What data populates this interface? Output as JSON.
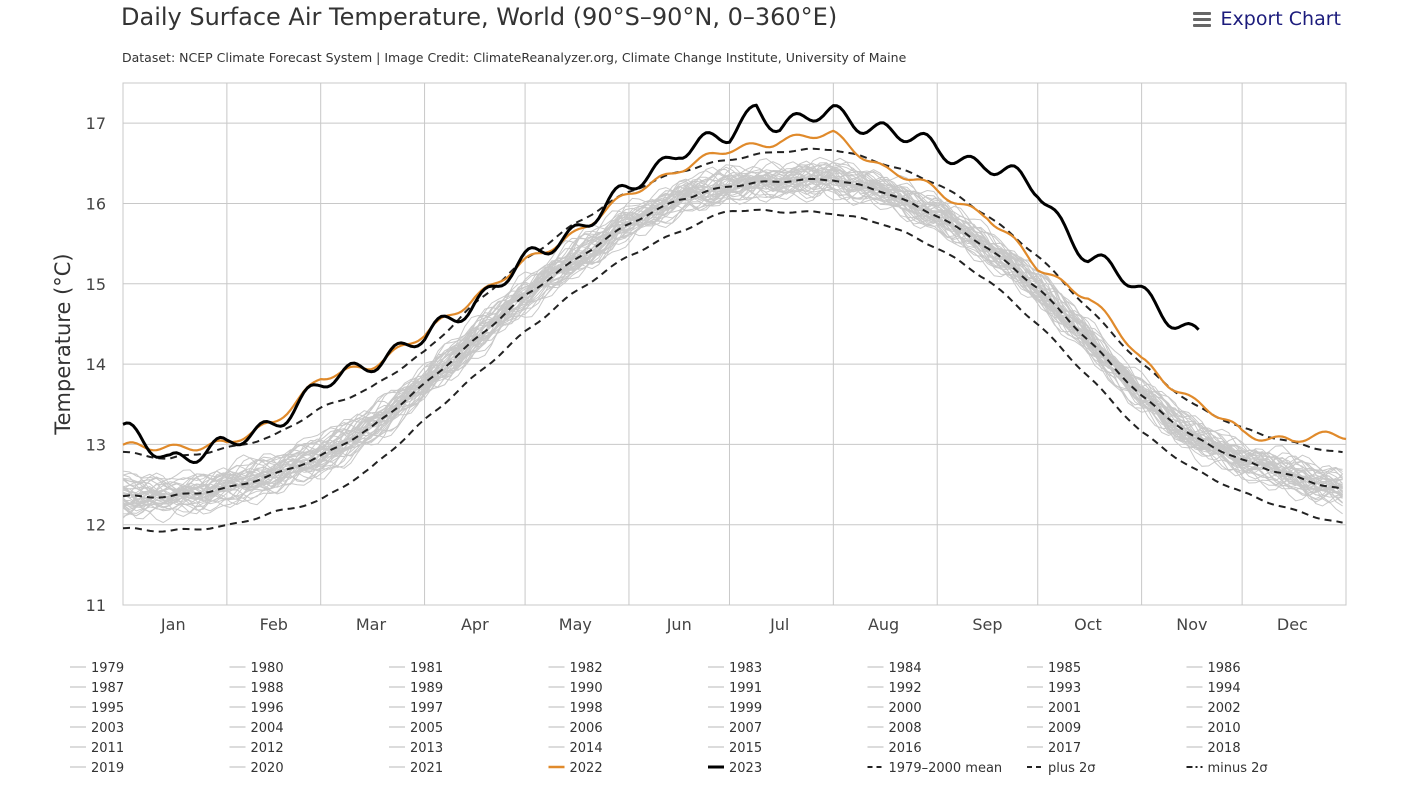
{
  "header": {
    "title": "Daily Surface Air Temperature, World (90°S–90°N, 0–360°E)",
    "subtitle": "Dataset: NCEP Climate Forecast System | Image Credit: ClimateReanalyzer.org, Climate Change Institute, University of Maine",
    "export_label": "Export Chart",
    "export_icon": "menu-icon"
  },
  "chart_data": {
    "type": "line",
    "title": "Daily Surface Air Temperature, World (90°S–90°N, 0–360°E)",
    "xlabel": "",
    "ylabel": "Temperature (°C)",
    "xlim": [
      1,
      366
    ],
    "ylim": [
      11,
      17.5
    ],
    "yticks": [
      11,
      12,
      13,
      14,
      15,
      16,
      17
    ],
    "month_labels": [
      "Jan",
      "Feb",
      "Mar",
      "Apr",
      "May",
      "Jun",
      "Jul",
      "Aug",
      "Sep",
      "Oct",
      "Nov",
      "Dec"
    ],
    "month_label_days": [
      16,
      46,
      75,
      106,
      136,
      167,
      197,
      228,
      259,
      289,
      320,
      350
    ],
    "month_boundary_days": [
      32,
      60,
      91,
      121,
      152,
      182,
      213,
      244,
      274,
      305,
      335
    ],
    "grid": true,
    "legend_position": "bottom",
    "colors": {
      "historical": "#c8c8c8",
      "y2022": "#e08a2b",
      "y2023": "#000000",
      "reference": "#222222"
    },
    "series": [
      {
        "name": "1979–2000 mean",
        "style": "dashed",
        "color": "#222222",
        "points": [
          [
            1,
            12.35
          ],
          [
            15,
            12.35
          ],
          [
            32,
            12.45
          ],
          [
            46,
            12.62
          ],
          [
            60,
            12.85
          ],
          [
            75,
            13.2
          ],
          [
            91,
            13.75
          ],
          [
            106,
            14.3
          ],
          [
            121,
            14.85
          ],
          [
            136,
            15.3
          ],
          [
            152,
            15.75
          ],
          [
            167,
            16.05
          ],
          [
            182,
            16.22
          ],
          [
            197,
            16.28
          ],
          [
            213,
            16.3
          ],
          [
            228,
            16.15
          ],
          [
            244,
            15.85
          ],
          [
            259,
            15.45
          ],
          [
            274,
            14.95
          ],
          [
            289,
            14.3
          ],
          [
            305,
            13.6
          ],
          [
            320,
            13.1
          ],
          [
            335,
            12.8
          ],
          [
            350,
            12.6
          ],
          [
            366,
            12.42
          ]
        ]
      },
      {
        "name": "plus 2σ",
        "style": "dashed",
        "color": "#222222",
        "points": [
          [
            1,
            12.9
          ],
          [
            15,
            12.82
          ],
          [
            32,
            12.95
          ],
          [
            46,
            13.1
          ],
          [
            60,
            13.45
          ],
          [
            75,
            13.7
          ],
          [
            91,
            14.15
          ],
          [
            106,
            14.75
          ],
          [
            121,
            15.3
          ],
          [
            136,
            15.75
          ],
          [
            152,
            16.15
          ],
          [
            167,
            16.4
          ],
          [
            182,
            16.55
          ],
          [
            197,
            16.65
          ],
          [
            213,
            16.68
          ],
          [
            228,
            16.5
          ],
          [
            244,
            16.25
          ],
          [
            259,
            15.85
          ],
          [
            274,
            15.35
          ],
          [
            289,
            14.7
          ],
          [
            305,
            14.0
          ],
          [
            320,
            13.5
          ],
          [
            335,
            13.2
          ],
          [
            350,
            13.02
          ],
          [
            366,
            12.88
          ]
        ]
      },
      {
        "name": "minus 2σ",
        "style": "dashed",
        "color": "#222222",
        "points": [
          [
            1,
            11.95
          ],
          [
            15,
            11.92
          ],
          [
            32,
            11.98
          ],
          [
            46,
            12.15
          ],
          [
            60,
            12.3
          ],
          [
            75,
            12.7
          ],
          [
            91,
            13.3
          ],
          [
            106,
            13.85
          ],
          [
            121,
            14.4
          ],
          [
            136,
            14.9
          ],
          [
            152,
            15.35
          ],
          [
            167,
            15.65
          ],
          [
            182,
            15.92
          ],
          [
            197,
            15.9
          ],
          [
            213,
            15.88
          ],
          [
            228,
            15.75
          ],
          [
            244,
            15.45
          ],
          [
            259,
            15.05
          ],
          [
            274,
            14.5
          ],
          [
            289,
            13.85
          ],
          [
            305,
            13.15
          ],
          [
            320,
            12.7
          ],
          [
            335,
            12.4
          ],
          [
            350,
            12.18
          ],
          [
            366,
            12.0
          ]
        ]
      },
      {
        "name": "2022",
        "style": "solid",
        "color": "#e08a2b",
        "points": [
          [
            1,
            12.95
          ],
          [
            15,
            12.98
          ],
          [
            32,
            12.98
          ],
          [
            46,
            13.3
          ],
          [
            60,
            13.8
          ],
          [
            75,
            14.0
          ],
          [
            91,
            14.35
          ],
          [
            106,
            14.85
          ],
          [
            121,
            15.25
          ],
          [
            136,
            15.65
          ],
          [
            152,
            16.1
          ],
          [
            167,
            16.45
          ],
          [
            182,
            16.65
          ],
          [
            197,
            16.8
          ],
          [
            213,
            16.85
          ],
          [
            228,
            16.45
          ],
          [
            244,
            16.15
          ],
          [
            259,
            15.85
          ],
          [
            274,
            15.2
          ],
          [
            289,
            14.85
          ],
          [
            305,
            14.05
          ],
          [
            320,
            13.55
          ],
          [
            335,
            13.15
          ],
          [
            350,
            13.05
          ],
          [
            366,
            13.12
          ]
        ]
      },
      {
        "name": "2023",
        "style": "solid",
        "color": "#000000",
        "points": [
          [
            1,
            13.15
          ],
          [
            15,
            12.85
          ],
          [
            32,
            12.95
          ],
          [
            46,
            13.3
          ],
          [
            60,
            13.7
          ],
          [
            75,
            14.05
          ],
          [
            91,
            14.3
          ],
          [
            106,
            14.8
          ],
          [
            121,
            15.25
          ],
          [
            136,
            15.7
          ],
          [
            152,
            16.15
          ],
          [
            167,
            16.7
          ],
          [
            182,
            16.8
          ],
          [
            190,
            17.2
          ],
          [
            197,
            17.0
          ],
          [
            213,
            17.1
          ],
          [
            228,
            16.95
          ],
          [
            244,
            16.65
          ],
          [
            259,
            16.5
          ],
          [
            274,
            16.15
          ],
          [
            289,
            15.35
          ],
          [
            305,
            14.9
          ],
          [
            320,
            14.4
          ],
          [
            322,
            14.35
          ]
        ]
      }
    ],
    "legend": [
      "1979",
      "1980",
      "1981",
      "1982",
      "1983",
      "1984",
      "1985",
      "1986",
      "1987",
      "1988",
      "1989",
      "1990",
      "1991",
      "1992",
      "1993",
      "1994",
      "1995",
      "1996",
      "1997",
      "1998",
      "1999",
      "2000",
      "2001",
      "2002",
      "2003",
      "2004",
      "2005",
      "2006",
      "2007",
      "2008",
      "2009",
      "2010",
      "2011",
      "2012",
      "2013",
      "2014",
      "2015",
      "2016",
      "2017",
      "2018",
      "2019",
      "2020",
      "2021",
      "2022",
      "2023",
      "1979–2000 mean",
      "plus 2σ",
      "minus 2σ"
    ]
  }
}
